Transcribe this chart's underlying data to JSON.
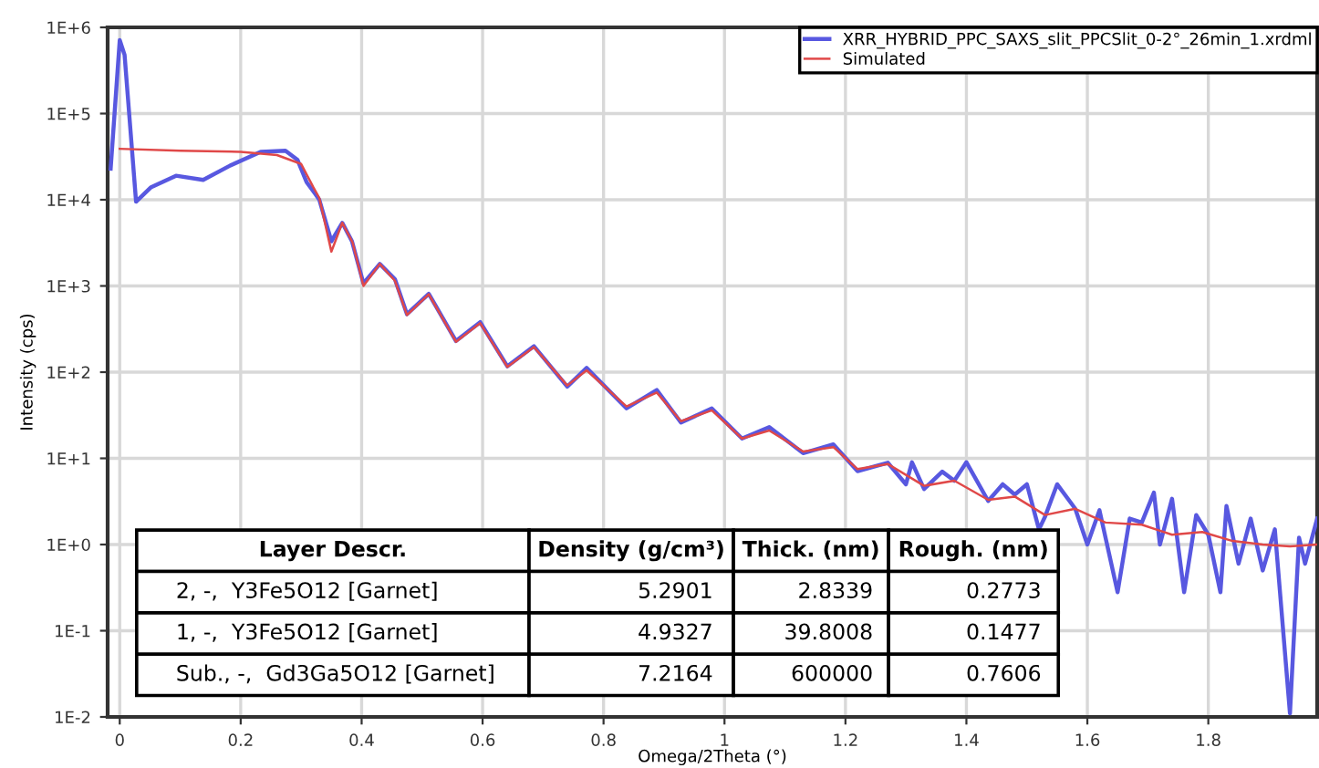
{
  "chart_data": {
    "type": "line",
    "xlabel": "Omega/2Theta (°)",
    "ylabel": "Intensity (cps)",
    "log": "y",
    "grid": true,
    "legend": "top right",
    "xlim": [
      -0.02,
      1.98
    ],
    "xticks": [
      0,
      0.2,
      0.4,
      0.6,
      0.8,
      1,
      1.2,
      1.4,
      1.6,
      1.8
    ],
    "ylim": [
      0.01,
      1000000
    ],
    "yticks": [
      {
        "value": 0.01,
        "label": "1E-2"
      },
      {
        "value": 0.1,
        "label": "1E-1"
      },
      {
        "value": 1,
        "label": "1E+0"
      },
      {
        "value": 10,
        "label": "1E+1"
      },
      {
        "value": 100,
        "label": "1E+2"
      },
      {
        "value": 1000,
        "label": "1E+3"
      },
      {
        "value": 10000,
        "label": "1E+4"
      },
      {
        "value": 100000,
        "label": "1E+5"
      },
      {
        "value": 1000000,
        "label": "1E+6"
      }
    ],
    "series": [
      {
        "name": "XRR_HYBRID_PPC_SAXS_slit_PPCSlit_0-2°_26min_1.xrdml",
        "color": "#5858e0",
        "x": [
          -0.015,
          0.0,
          0.008,
          0.027,
          0.052,
          0.093,
          0.138,
          0.183,
          0.233,
          0.274,
          0.294,
          0.309,
          0.324,
          0.33,
          0.35,
          0.368,
          0.384,
          0.403,
          0.43,
          0.455,
          0.475,
          0.511,
          0.556,
          0.596,
          0.641,
          0.685,
          0.74,
          0.772,
          0.838,
          0.888,
          0.928,
          0.979,
          1.029,
          1.074,
          1.13,
          1.18,
          1.22,
          1.27,
          1.3,
          1.31,
          1.33,
          1.36,
          1.38,
          1.4,
          1.436,
          1.46,
          1.48,
          1.5,
          1.52,
          1.53,
          1.55,
          1.58,
          1.6,
          1.62,
          1.65,
          1.67,
          1.69,
          1.71,
          1.72,
          1.74,
          1.76,
          1.78,
          1.8,
          1.82,
          1.83,
          1.85,
          1.87,
          1.89,
          1.91,
          1.935,
          1.95,
          1.96,
          1.98
        ],
        "values": [
          23000,
          710000,
          480000,
          9500,
          14000,
          19000,
          17000,
          25000,
          36000,
          37000,
          29000,
          16000,
          11500,
          10000,
          3300,
          5400,
          3300,
          1070,
          1800,
          1200,
          470,
          810,
          230,
          380,
          117,
          200,
          68,
          112,
          38,
          62,
          26,
          38,
          17,
          23,
          11.5,
          14.5,
          7.1,
          8.9,
          5,
          9,
          4.4,
          7,
          5.5,
          9,
          3.2,
          5,
          3.8,
          5,
          1.5,
          2.1,
          5,
          2.6,
          1.0,
          2.5,
          0.28,
          2,
          1.8,
          4,
          1.0,
          3.4,
          0.28,
          2.2,
          1.3,
          0.28,
          2.8,
          0.6,
          2,
          0.5,
          1.5,
          0.011,
          1.2,
          0.6,
          2.0
        ]
      },
      {
        "name": "Simulated",
        "color": "#e04848",
        "x": [
          0.0,
          0.1,
          0.2,
          0.26,
          0.3,
          0.32,
          0.33,
          0.35,
          0.368,
          0.385,
          0.403,
          0.43,
          0.455,
          0.475,
          0.511,
          0.556,
          0.596,
          0.641,
          0.685,
          0.74,
          0.772,
          0.838,
          0.888,
          0.928,
          0.979,
          1.029,
          1.074,
          1.13,
          1.18,
          1.22,
          1.27,
          1.33,
          1.38,
          1.436,
          1.48,
          1.53,
          1.58,
          1.63,
          1.69,
          1.74,
          1.79,
          1.84,
          1.89,
          1.935,
          1.98
        ],
        "values": [
          39000,
          37000,
          36000,
          33000,
          26000,
          14000,
          10500,
          2500,
          5400,
          3200,
          1000,
          1800,
          1150,
          460,
          800,
          225,
          370,
          115,
          195,
          70,
          105,
          40,
          58,
          27,
          36,
          17,
          21,
          12,
          13.5,
          7.5,
          8.6,
          4.8,
          5.5,
          3.3,
          3.6,
          2.2,
          2.6,
          1.8,
          1.7,
          1.3,
          1.4,
          1.1,
          1.0,
          0.95,
          1.0
        ]
      }
    ],
    "annotations": [
      "Layer Descr.",
      "Density (g/cm³)",
      "Thick. (nm)",
      "Rough. (nm)",
      "2, -,  Y3Fe5O12 [Garnet]",
      "5.2901",
      "2.8339",
      "0.2773",
      "1, -,  Y3Fe5O12 [Garnet]",
      "4.9327",
      "39.8008",
      "0.1477",
      "Sub., -,  Gd3Ga5O12 [Garnet]",
      "7.2164",
      "600000",
      "0.7606"
    ]
  }
}
